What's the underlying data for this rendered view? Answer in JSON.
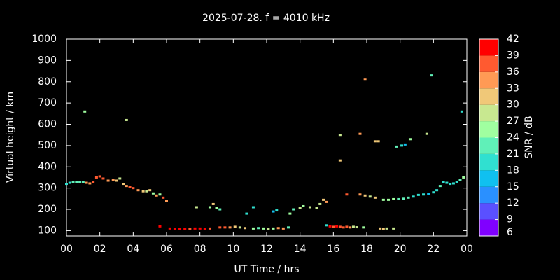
{
  "chart_data": {
    "type": "scatter",
    "title": "2025-07-28. f = 4010 kHz",
    "x_label": "UT Time / hrs",
    "y_label": "Virtual height / km",
    "xlim": [
      0,
      24
    ],
    "xticks": [
      {
        "value": 0,
        "label": "00"
      },
      {
        "value": 2,
        "label": "02"
      },
      {
        "value": 4,
        "label": "04"
      },
      {
        "value": 6,
        "label": "06"
      },
      {
        "value": 8,
        "label": "08"
      },
      10,
      12,
      14,
      16,
      18,
      20,
      22,
      {
        "value": 24,
        "label": "00"
      }
    ],
    "ylim": [
      75,
      1000
    ],
    "yticks": [
      100,
      200,
      300,
      400,
      500,
      600,
      700,
      800,
      900,
      1000
    ],
    "x": [
      0,
      0.2,
      0.4,
      0.6,
      0.8,
      1.0,
      1.2,
      1.4,
      1.6,
      1.8,
      2.0,
      2.2,
      2.5,
      2.8,
      3.0,
      3.2,
      3.4,
      3.6,
      3.8,
      4.0,
      4.3,
      4.6,
      4.8,
      5.0,
      5.2,
      5.4,
      5.6,
      5.8,
      6.0,
      1.1,
      3.6,
      5.6,
      6.2,
      6.5,
      6.8,
      7.1,
      7.4,
      7.7,
      8.0,
      8.3,
      8.6,
      9.2,
      9.5,
      9.8,
      10.1,
      10.4,
      10.7,
      11.2,
      11.5,
      11.8,
      12.1,
      12.4,
      12.7,
      13.0,
      13.3,
      7.8,
      8.6,
      8.8,
      9.0,
      9.2,
      10.8,
      11.2,
      12.4,
      12.6,
      13.4,
      13.6,
      14.0,
      14.2,
      14.6,
      15.0,
      15.2,
      15.4,
      15.6,
      15.6,
      15.8,
      16.0,
      16.2,
      16.4,
      16.6,
      16.8,
      17.0,
      17.2,
      17.4,
      17.8,
      18.8,
      19.0,
      19.2,
      19.6,
      16.8,
      17.6,
      17.9,
      18.2,
      18.5,
      19.0,
      19.3,
      19.6,
      19.9,
      20.2,
      20.5,
      20.8,
      21.1,
      21.4,
      21.7,
      22.0,
      22.2,
      22.4,
      22.6,
      22.8,
      23.0,
      23.2,
      23.4,
      23.6,
      23.8,
      16.4,
      16.4,
      17.6,
      17.9,
      18.5,
      18.7,
      19.8,
      20.1,
      20.3,
      20.6,
      21.6,
      21.9,
      23.7
    ],
    "y": [
      320,
      325,
      328,
      330,
      330,
      328,
      325,
      322,
      330,
      350,
      355,
      345,
      335,
      340,
      335,
      345,
      320,
      310,
      305,
      300,
      290,
      285,
      285,
      290,
      275,
      265,
      270,
      255,
      240,
      660,
      620,
      120,
      110,
      108,
      108,
      108,
      108,
      110,
      110,
      108,
      110,
      115,
      115,
      115,
      118,
      115,
      112,
      110,
      112,
      110,
      108,
      110,
      112,
      110,
      115,
      210,
      210,
      225,
      205,
      200,
      180,
      210,
      190,
      195,
      180,
      200,
      205,
      215,
      210,
      205,
      225,
      245,
      235,
      125,
      120,
      118,
      120,
      118,
      115,
      118,
      115,
      118,
      116,
      115,
      110,
      108,
      110,
      110,
      270,
      270,
      265,
      260,
      255,
      245,
      245,
      248,
      248,
      250,
      255,
      260,
      268,
      270,
      272,
      280,
      290,
      310,
      330,
      325,
      320,
      322,
      330,
      340,
      350,
      430,
      550,
      555,
      810,
      520,
      520,
      495,
      500,
      505,
      530,
      555,
      830,
      660
    ],
    "snr": [
      20,
      20,
      21,
      21,
      22,
      22,
      33,
      33,
      36,
      38,
      38,
      36,
      33,
      33,
      30,
      27,
      30,
      33,
      36,
      36,
      33,
      30,
      27,
      30,
      24,
      33,
      24,
      36,
      33,
      24,
      27,
      42,
      39,
      39,
      40,
      39,
      38,
      39,
      40,
      39,
      38,
      36,
      36,
      35,
      30,
      28,
      30,
      24,
      22,
      24,
      27,
      24,
      33,
      33,
      21,
      27,
      24,
      30,
      24,
      21,
      20,
      20,
      15,
      18,
      24,
      22,
      27,
      24,
      27,
      27,
      27,
      30,
      33,
      18,
      39,
      38,
      39,
      38,
      36,
      36,
      35,
      27,
      27,
      24,
      30,
      30,
      28,
      27,
      36,
      33,
      30,
      27,
      30,
      24,
      24,
      24,
      22,
      21,
      21,
      20,
      18,
      18,
      16,
      18,
      18,
      21,
      20,
      18,
      18,
      18,
      20,
      22,
      24,
      30,
      27,
      33,
      33,
      30,
      30,
      21,
      18,
      15,
      24,
      27,
      21,
      18
    ],
    "colorbar": {
      "label": "SNR / dB",
      "lim": [
        6,
        42
      ],
      "ticks": [
        6,
        9,
        12,
        15,
        18,
        21,
        24,
        27,
        30,
        33,
        36,
        39,
        42
      ],
      "colors": [
        "#8000ff",
        "#5a50ff",
        "#2a90ff",
        "#10c0f0",
        "#30e0d0",
        "#60f0b8",
        "#a0ffa0",
        "#c8e890",
        "#f0c878",
        "#ff9a55",
        "#ff5a30",
        "#ff0000"
      ]
    }
  }
}
